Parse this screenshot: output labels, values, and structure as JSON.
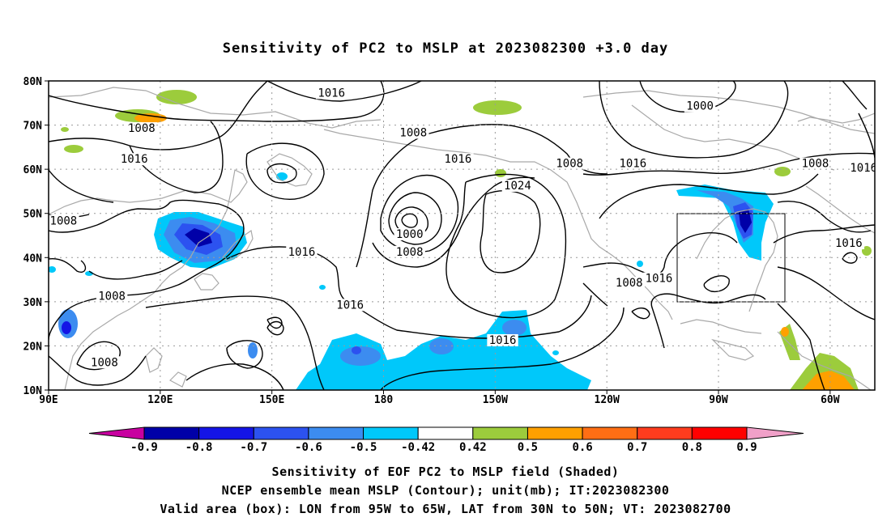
{
  "title": "Sensitivity of PC2 to MSLP at 2023082300 +3.0 day",
  "map": {
    "lat_ticks": [
      "80N",
      "70N",
      "60N",
      "50N",
      "40N",
      "30N",
      "20N",
      "10N"
    ],
    "lon_ticks": [
      "90E",
      "120E",
      "150E",
      "180",
      "150W",
      "120W",
      "90W",
      "60W"
    ],
    "extent": {
      "lon_min_deg_east": 90,
      "lon_max_deg_east": 312,
      "lat_min": 10,
      "lat_max": 80
    },
    "contour_color": "#000000",
    "coastline_color": "#a9a9a9",
    "contour_labels": [
      {
        "text": "1016",
        "lon": 166,
        "lat": 77
      },
      {
        "text": "1008",
        "lon": 115,
        "lat": 69
      },
      {
        "text": "1016",
        "lon": 113,
        "lat": 62
      },
      {
        "text": "1008",
        "lon": 188,
        "lat": 68
      },
      {
        "text": "1000",
        "lon": 265,
        "lat": 74
      },
      {
        "text": "1016",
        "lon": 200,
        "lat": 62
      },
      {
        "text": "1024",
        "lon": 216,
        "lat": 56
      },
      {
        "text": "1008",
        "lon": 230,
        "lat": 61
      },
      {
        "text": "1016",
        "lon": 247,
        "lat": 61
      },
      {
        "text": "1008",
        "lon": 296,
        "lat": 61
      },
      {
        "text": "1016",
        "lon": 309,
        "lat": 60
      },
      {
        "text": "1008",
        "lon": 94,
        "lat": 48
      },
      {
        "text": "1000",
        "lon": 187,
        "lat": 45
      },
      {
        "text": "1008",
        "lon": 187,
        "lat": 41
      },
      {
        "text": "1016",
        "lon": 158,
        "lat": 41
      },
      {
        "text": "1016",
        "lon": 305,
        "lat": 43
      },
      {
        "text": "1008",
        "lon": 107,
        "lat": 31
      },
      {
        "text": "1016",
        "lon": 171,
        "lat": 29
      },
      {
        "text": "1008",
        "lon": 246,
        "lat": 34
      },
      {
        "text": "1016",
        "lon": 254,
        "lat": 35
      },
      {
        "text": "1016",
        "lon": 212,
        "lat": 21
      },
      {
        "text": "1008",
        "lon": 105,
        "lat": 16
      }
    ],
    "valid_box": {
      "lon_west": "95W",
      "lon_east": "65W",
      "lat_south": "30N",
      "lat_north": "50N"
    }
  },
  "colorbar": {
    "labels": [
      "-0.9",
      "-0.8",
      "-0.7",
      "-0.6",
      "-0.5",
      "-0.42",
      "0.42",
      "0.5",
      "0.6",
      "0.7",
      "0.8",
      "0.9"
    ],
    "colors": [
      "#0000a8",
      "#1414e6",
      "#2c52f0",
      "#3c8cf0",
      "#00c8fa",
      "#ffffff",
      "#9ccc3c",
      "#ffa000",
      "#ff6e14",
      "#ff3c1e",
      "#ff0000"
    ],
    "low_end_color": "#c800a0",
    "high_end_color": "#f0a0c8"
  },
  "footer": {
    "line1": "Sensitivity of EOF PC2 to MSLP field (Shaded)",
    "line2": "NCEP ensemble mean MSLP (Contour); unit(mb); IT:2023082300",
    "line3": "Valid area (box): LON from 95W to 65W, LAT from 30N to 50N; VT: 2023082700"
  }
}
